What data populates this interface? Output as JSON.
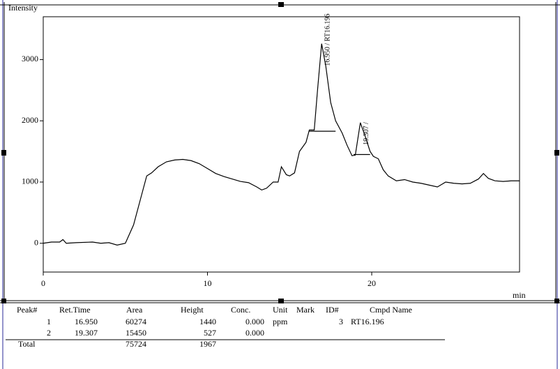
{
  "chart_data": {
    "type": "line",
    "y_label": "Intensity",
    "x_label": "min",
    "xlim": [
      0,
      29
    ],
    "xticks": [
      0,
      10,
      20
    ],
    "ylim": [
      -470,
      3700
    ],
    "yticks": [
      0,
      1000,
      2000,
      3000
    ],
    "color": "#000000",
    "x": [
      0,
      0.5,
      1,
      1.2,
      1.4,
      2,
      3,
      3.5,
      4,
      4.5,
      5,
      5.5,
      6,
      6.3,
      6.6,
      7,
      7.5,
      8,
      8.5,
      9,
      9.5,
      10,
      10.5,
      11,
      11.5,
      12,
      12.5,
      13,
      13.3,
      13.6,
      14,
      14.3,
      14.5,
      14.8,
      15,
      15.3,
      15.6,
      16,
      16.2,
      16.5,
      16.7,
      16.95,
      17.2,
      17.5,
      17.8,
      18.2,
      18.5,
      18.8,
      19,
      19.307,
      19.6,
      19.9,
      20.1,
      20.4,
      20.7,
      21,
      21.5,
      22,
      22.5,
      23,
      23.5,
      24,
      24.5,
      25,
      25.5,
      26,
      26.5,
      26.8,
      27.1,
      27.5,
      28,
      28.5,
      29
    ],
    "values": [
      0,
      20,
      20,
      60,
      0,
      10,
      20,
      0,
      10,
      -30,
      0,
      300,
      800,
      1100,
      1150,
      1250,
      1330,
      1360,
      1370,
      1350,
      1300,
      1220,
      1140,
      1090,
      1050,
      1010,
      990,
      920,
      870,
      900,
      1000,
      1000,
      1250,
      1120,
      1100,
      1150,
      1500,
      1650,
      1850,
      1850,
      2500,
      3260,
      2900,
      2300,
      2000,
      1800,
      1600,
      1430,
      1440,
      1970,
      1750,
      1500,
      1420,
      1380,
      1200,
      1100,
      1020,
      1040,
      1000,
      980,
      950,
      920,
      1000,
      980,
      970,
      980,
      1050,
      1140,
      1060,
      1020,
      1010,
      1020,
      1020
    ],
    "baselines": [
      {
        "x": [
          16.2,
          17.8
        ],
        "values": [
          1830,
          1830
        ]
      },
      {
        "x": [
          18.9,
          19.9
        ],
        "values": [
          1450,
          1450
        ]
      }
    ],
    "annotations": [
      {
        "text": "16.950 / RT16.196",
        "x": 16.95,
        "y": 3260
      },
      {
        "text": "19.307 /",
        "x": 19.307,
        "y": 1970
      }
    ]
  },
  "table": {
    "headers": [
      "Peak#",
      "Ret.Time",
      "Area",
      "Height",
      "Conc.",
      "Unit",
      "Mark",
      "ID#",
      "Cmpd Name"
    ],
    "rows": [
      [
        "1",
        "16.950",
        "60274",
        "1440",
        "0.000",
        "ppm",
        null,
        "3",
        "RT16.196"
      ],
      [
        "2",
        "19.307",
        "15450",
        "527",
        "0.000",
        null,
        null,
        null,
        null
      ]
    ],
    "total": {
      "label": "Total",
      "area": "75724",
      "height": "1967"
    }
  }
}
